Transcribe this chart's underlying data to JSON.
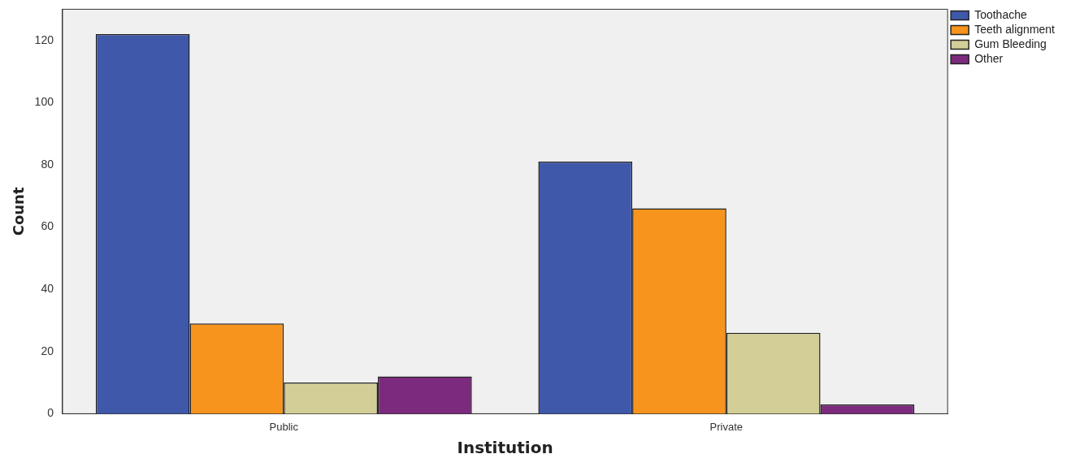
{
  "chart_data": {
    "type": "bar",
    "xlabel": "Institution",
    "ylabel": "Count",
    "categories": [
      "Public",
      "Private"
    ],
    "series": [
      {
        "name": "Toothache",
        "color": "#3f58aa",
        "values": [
          122,
          81
        ]
      },
      {
        "name": "Teeth alignment",
        "color": "#f7941d",
        "values": [
          29,
          66
        ]
      },
      {
        "name": "Gum Bleeding",
        "color": "#d3ce98",
        "values": [
          10,
          26
        ]
      },
      {
        "name": "Other",
        "color": "#7c2a7e",
        "values": [
          12,
          3
        ]
      }
    ],
    "ylim": [
      0,
      130
    ],
    "yticks": [
      0,
      20,
      40,
      60,
      80,
      100,
      120
    ],
    "grid": false,
    "legend": "top right"
  }
}
